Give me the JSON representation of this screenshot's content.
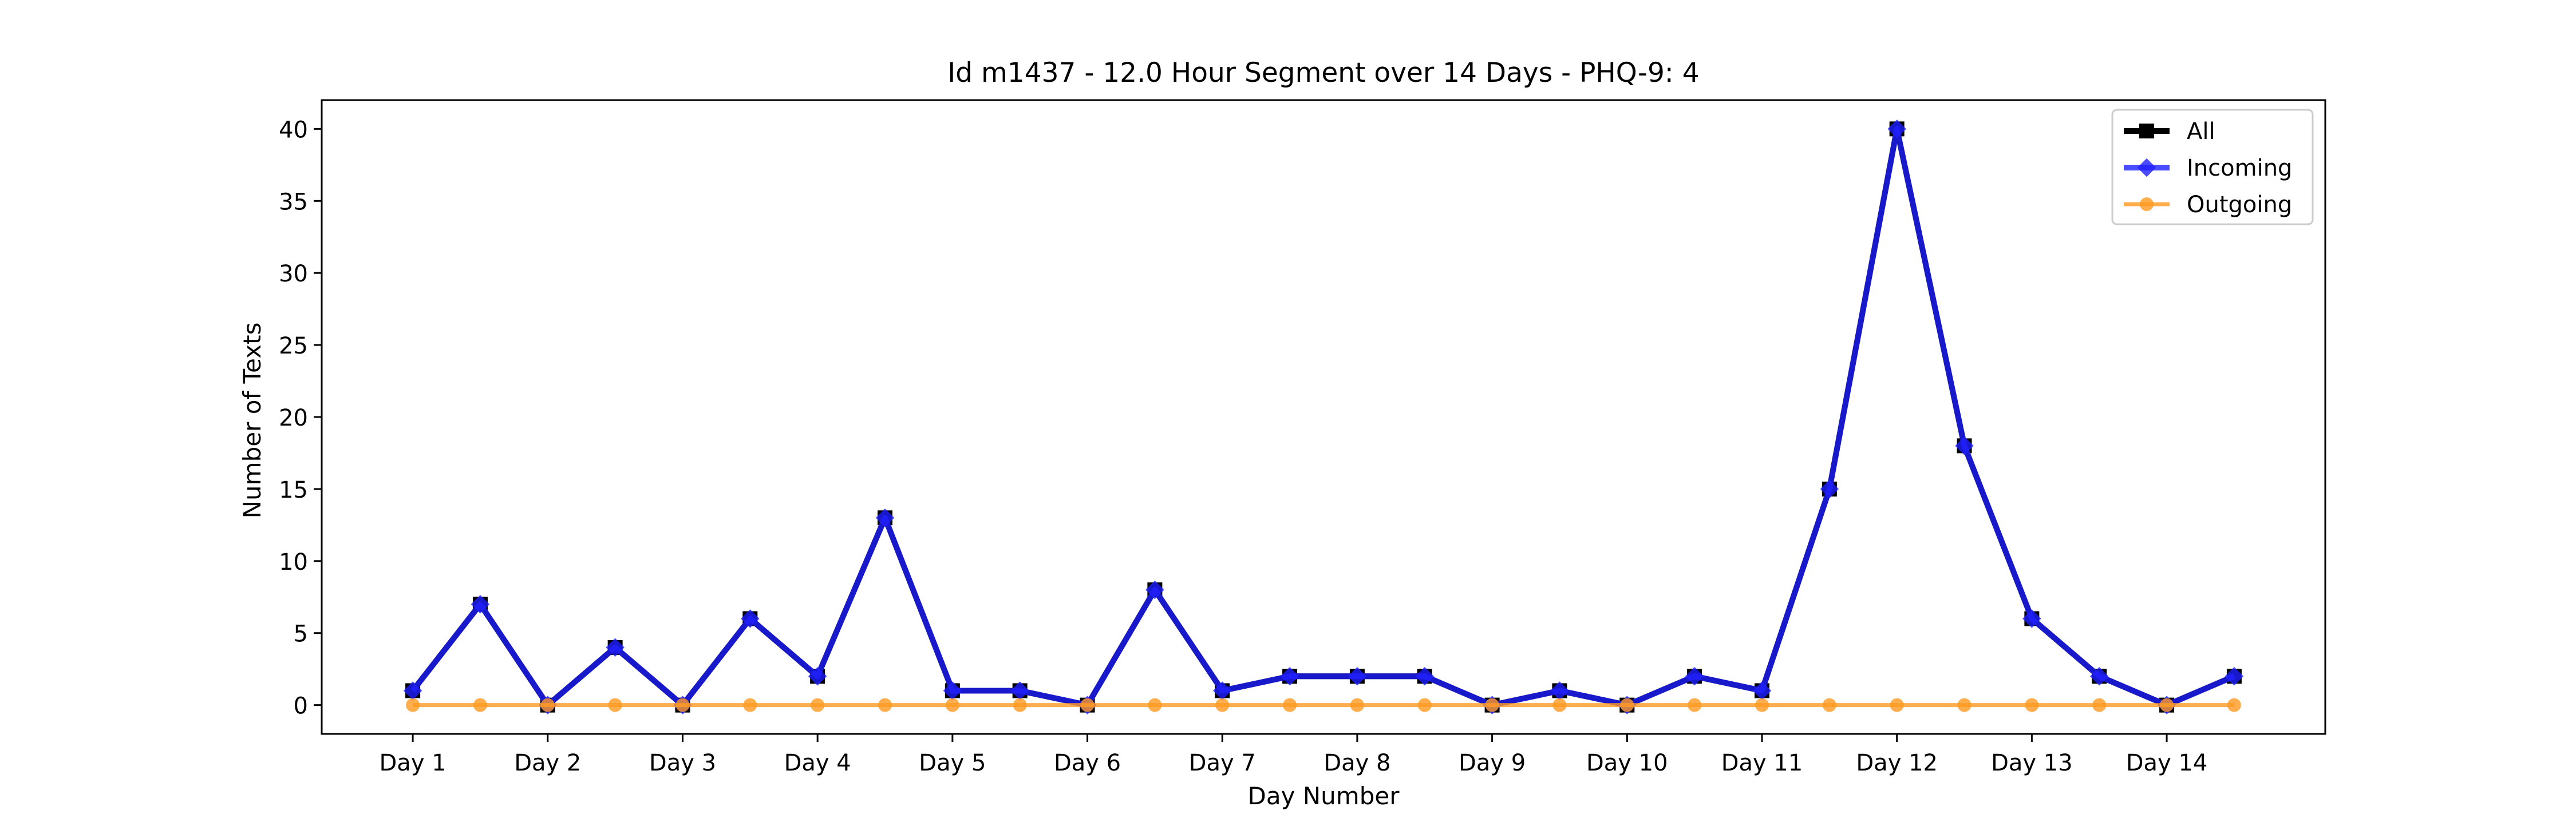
{
  "chart_data": {
    "type": "line",
    "title": "Id m1437 - 12.0 Hour Segment over 14 Days - PHQ-9: 4",
    "xlabel": "Day Number",
    "ylabel": "Number of Texts",
    "ylim": [
      -2,
      42
    ],
    "yticks": [
      0,
      5,
      10,
      15,
      20,
      25,
      30,
      35,
      40
    ],
    "xticks": [
      "Day 1",
      "Day 2",
      "Day 3",
      "Day 4",
      "Day 5",
      "Day 6",
      "Day 7",
      "Day 8",
      "Day 9",
      "Day 10",
      "Day 11",
      "Day 12",
      "Day 13",
      "Day 14"
    ],
    "grid": false,
    "legend_position": "top-right",
    "x": [
      1,
      1.5,
      2,
      2.5,
      3,
      3.5,
      4,
      4.5,
      5,
      5.5,
      6,
      6.5,
      7,
      7.5,
      8,
      8.5,
      9,
      9.5,
      10,
      10.5,
      11,
      11.5,
      12,
      12.5,
      13,
      13.5,
      14,
      14.5
    ],
    "series": [
      {
        "name": "All",
        "color": "#000000",
        "marker": "square",
        "values": [
          1,
          7,
          0,
          4,
          0,
          6,
          2,
          13,
          1,
          1,
          0,
          8,
          1,
          2,
          2,
          2,
          0,
          1,
          0,
          2,
          1,
          15,
          40,
          18,
          6,
          2,
          0,
          2
        ]
      },
      {
        "name": "Incoming",
        "color": "#1f1fff",
        "marker": "diamond",
        "values": [
          1,
          7,
          0,
          4,
          0,
          6,
          2,
          13,
          1,
          1,
          0,
          8,
          1,
          2,
          2,
          2,
          0,
          1,
          0,
          2,
          1,
          15,
          40,
          18,
          6,
          2,
          0,
          2
        ]
      },
      {
        "name": "Outgoing",
        "color": "#ff9a22",
        "marker": "circle",
        "values": [
          0,
          0,
          0,
          0,
          0,
          0,
          0,
          0,
          0,
          0,
          0,
          0,
          0,
          0,
          0,
          0,
          0,
          0,
          0,
          0,
          0,
          0,
          0,
          0,
          0,
          0,
          0,
          0
        ]
      }
    ]
  }
}
